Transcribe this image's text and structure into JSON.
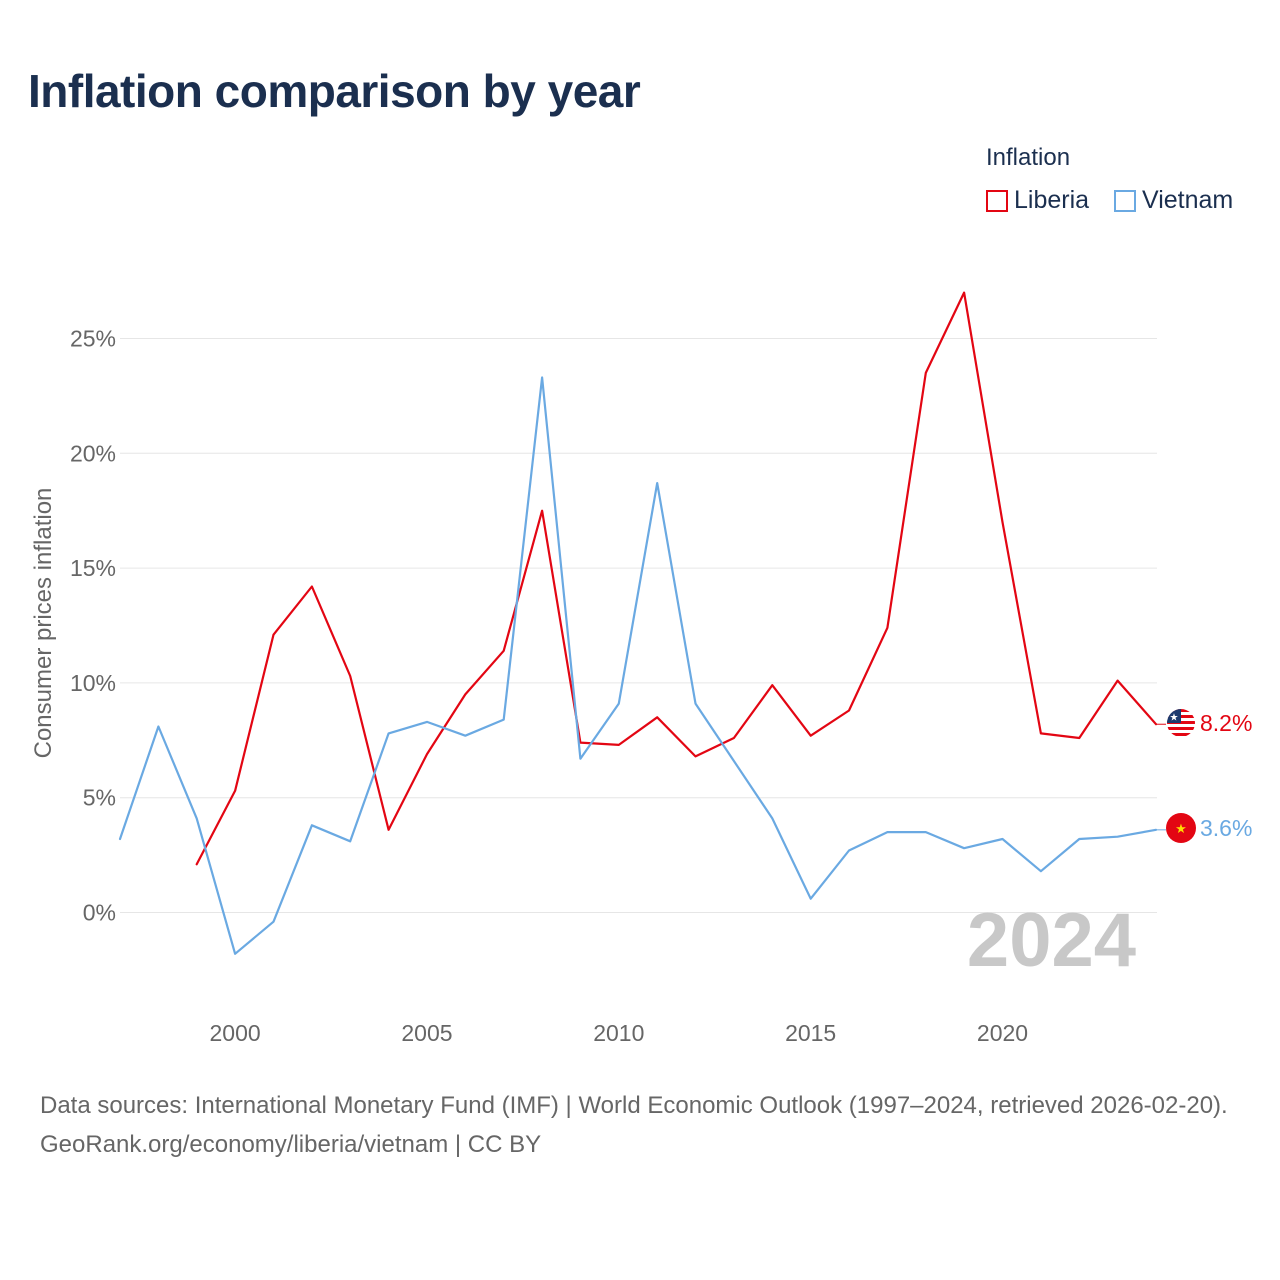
{
  "title": "Inflation comparison by year",
  "legend": {
    "title": "Inflation",
    "items": [
      {
        "label": "Liberia",
        "color": "#e30613"
      },
      {
        "label": "Vietnam",
        "color": "#6aa9e2"
      }
    ]
  },
  "year_watermark": "2024",
  "end_labels": {
    "liberia": "8.2%",
    "vietnam": "3.6%"
  },
  "footer": {
    "sources": "Data sources: International Monetary Fund (IMF) | World Economic Outlook (1997–2024, retrieved 2026-02-20).",
    "link": "GeoRank.org/economy/liberia/vietnam | CC BY"
  },
  "chart_data": {
    "type": "line",
    "title": "Inflation comparison by year",
    "xlabel": "",
    "ylabel": "Consumer prices inflation",
    "xlim": [
      1997,
      2024
    ],
    "ylim": [
      -4,
      27
    ],
    "x_ticks": [
      {
        "value": 2000,
        "label": "2000"
      },
      {
        "value": 2005,
        "label": "2005"
      },
      {
        "value": 2010,
        "label": "2010"
      },
      {
        "value": 2015,
        "label": "2015"
      },
      {
        "value": 2020,
        "label": "2020"
      }
    ],
    "y_ticks": [
      {
        "value": 0,
        "label": "0%"
      },
      {
        "value": 5,
        "label": "5%"
      },
      {
        "value": 10,
        "label": "10%"
      },
      {
        "value": 15,
        "label": "15%"
      },
      {
        "value": 20,
        "label": "20%"
      },
      {
        "value": 25,
        "label": "25%"
      }
    ],
    "series": [
      {
        "name": "Liberia",
        "color": "#e30613",
        "points": [
          [
            1999,
            2.1
          ],
          [
            2000,
            5.3
          ],
          [
            2001,
            12.1
          ],
          [
            2002,
            14.2
          ],
          [
            2003,
            10.3
          ],
          [
            2004,
            3.6
          ],
          [
            2005,
            6.9
          ],
          [
            2006,
            9.5
          ],
          [
            2007,
            11.4
          ],
          [
            2008,
            17.5
          ],
          [
            2009,
            7.4
          ],
          [
            2010,
            7.3
          ],
          [
            2011,
            8.5
          ],
          [
            2012,
            6.8
          ],
          [
            2013,
            7.6
          ],
          [
            2014,
            9.9
          ],
          [
            2015,
            7.7
          ],
          [
            2016,
            8.8
          ],
          [
            2017,
            12.4
          ],
          [
            2018,
            23.5
          ],
          [
            2019,
            27.0
          ],
          [
            2020,
            17.0
          ],
          [
            2021,
            7.8
          ],
          [
            2022,
            7.6
          ],
          [
            2023,
            10.1
          ],
          [
            2024,
            8.2
          ]
        ]
      },
      {
        "name": "Vietnam",
        "color": "#6aa9e2",
        "points": [
          [
            1997,
            3.2
          ],
          [
            1998,
            8.1
          ],
          [
            1999,
            4.1
          ],
          [
            2000,
            -1.8
          ],
          [
            2001,
            -0.4
          ],
          [
            2002,
            3.8
          ],
          [
            2003,
            3.1
          ],
          [
            2004,
            7.8
          ],
          [
            2005,
            8.3
          ],
          [
            2006,
            7.7
          ],
          [
            2007,
            8.4
          ],
          [
            2008,
            23.3
          ],
          [
            2009,
            6.7
          ],
          [
            2010,
            9.1
          ],
          [
            2011,
            18.7
          ],
          [
            2012,
            9.1
          ],
          [
            2013,
            6.6
          ],
          [
            2014,
            4.1
          ],
          [
            2015,
            0.6
          ],
          [
            2016,
            2.7
          ],
          [
            2017,
            3.5
          ],
          [
            2018,
            3.5
          ],
          [
            2019,
            2.8
          ],
          [
            2020,
            3.2
          ],
          [
            2021,
            1.8
          ],
          [
            2022,
            3.2
          ],
          [
            2023,
            3.3
          ],
          [
            2024,
            3.6
          ]
        ]
      }
    ]
  }
}
